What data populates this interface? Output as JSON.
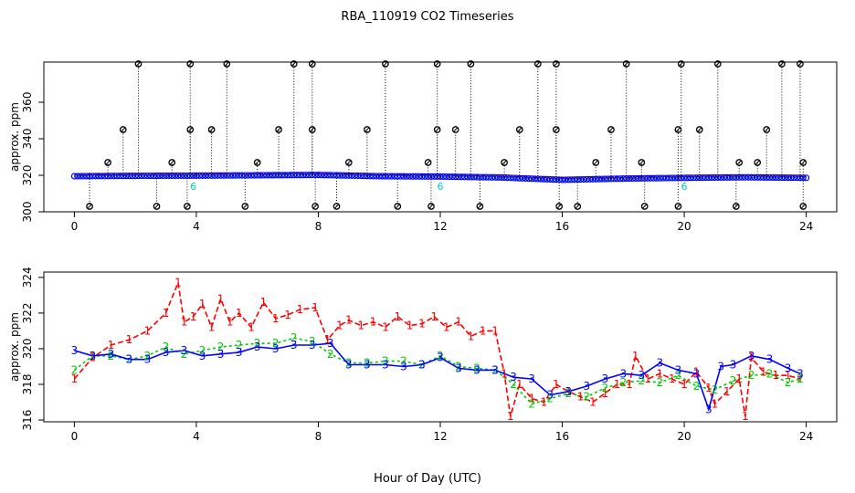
{
  "chart_data": [
    {
      "type": "scatter",
      "title": "RBA_110919  CO2 Timeseries",
      "xlabel": "",
      "ylabel": "approx. ppm",
      "xlim": [
        -1,
        25
      ],
      "ylim": [
        300,
        382
      ],
      "xticks": [
        0,
        4,
        8,
        12,
        16,
        20,
        24
      ],
      "yticks": [
        300,
        320,
        340,
        360
      ],
      "grid": false,
      "colors": {
        "series1": "#ff0000",
        "series2": "#00cc00",
        "series3": "#0000ff",
        "flagged": "#00cccc",
        "spikes": "#000000"
      },
      "baseline": {
        "x": [
          0,
          2,
          4,
          6,
          8,
          10,
          12,
          14,
          16,
          18,
          20,
          22,
          24
        ],
        "y": [
          319.5,
          319.7,
          319.8,
          320,
          320.2,
          319.5,
          319.3,
          318.8,
          317.5,
          318.2,
          318.6,
          318.9,
          318.6
        ]
      },
      "flagged_points": {
        "x": [
          3.9,
          12.0,
          20.0
        ],
        "y": [
          314,
          314,
          314
        ],
        "label": "6"
      },
      "spikes": {
        "x": [
          2.1,
          3.8,
          5.0,
          7.2,
          7.8,
          10.2,
          11.9,
          13.0,
          15.2,
          15.8,
          18.1,
          19.9,
          21.1,
          23.2,
          23.8
        ],
        "y": [
          381,
          381,
          381,
          381,
          381,
          381,
          381,
          381,
          381,
          381,
          381,
          381,
          381,
          381,
          381
        ]
      },
      "mid_points": {
        "x": [
          1.1,
          1.6,
          3.2,
          3.8,
          4.5,
          6.0,
          6.7,
          7.8,
          9.0,
          9.6,
          11.6,
          11.9,
          12.5,
          14.1,
          14.6,
          15.8,
          17.1,
          17.6,
          18.6,
          19.8,
          20.5,
          21.8,
          22.4,
          22.7,
          23.9
        ],
        "y": [
          327,
          345,
          327,
          345,
          345,
          327,
          345,
          345,
          327,
          345,
          327,
          345,
          345,
          327,
          345,
          345,
          327,
          345,
          327,
          345,
          345,
          327,
          327,
          345,
          327
        ]
      },
      "low_points": {
        "x": [
          0.5,
          2.7,
          3.7,
          5.6,
          7.9,
          8.6,
          10.6,
          11.7,
          13.3,
          15.9,
          16.5,
          18.7,
          19.8,
          21.7,
          23.9
        ],
        "y": [
          303,
          303,
          303,
          303,
          303,
          303,
          303,
          303,
          303,
          303,
          303,
          303,
          303,
          303,
          303
        ]
      }
    },
    {
      "type": "line",
      "title": "",
      "xlabel": "Hour of Day (UTC)",
      "ylabel": "approx. ppm",
      "xlim": [
        -1,
        25
      ],
      "ylim": [
        315.9,
        324.3
      ],
      "xticks": [
        0,
        4,
        8,
        12,
        16,
        20,
        24
      ],
      "yticks": [
        316,
        318,
        320,
        322,
        324
      ],
      "grid": false,
      "series": [
        {
          "name": "1",
          "color": "#ff0000",
          "x": [
            0,
            0.6,
            1.2,
            1.8,
            2.4,
            3.0,
            3.4,
            3.6,
            3.9,
            4.2,
            4.5,
            4.8,
            5.1,
            5.4,
            5.8,
            6.2,
            6.6,
            7.0,
            7.4,
            7.9,
            8.3,
            8.7,
            9.0,
            9.4,
            9.8,
            10.2,
            10.6,
            11.0,
            11.4,
            11.8,
            12.2,
            12.6,
            13.0,
            13.4,
            13.8,
            14.1,
            14.3,
            14.6,
            15.0,
            15.4,
            15.8,
            16.2,
            16.6,
            17.0,
            17.4,
            17.8,
            18.2,
            18.4,
            18.8,
            19.2,
            19.6,
            20.0,
            20.4,
            20.8,
            21.0,
            21.4,
            21.8,
            22.0,
            22.2,
            22.6,
            23.0,
            23.4,
            23.8
          ],
          "values": [
            318.3,
            319.5,
            320.2,
            320.5,
            321.0,
            322.0,
            323.7,
            321.5,
            321.8,
            322.5,
            321.2,
            322.8,
            321.5,
            322.0,
            321.2,
            322.6,
            321.7,
            321.9,
            322.2,
            322.3,
            320.5,
            321.3,
            321.6,
            321.3,
            321.5,
            321.2,
            321.8,
            321.3,
            321.4,
            321.8,
            321.2,
            321.5,
            320.7,
            321.0,
            321.0,
            318.6,
            316.2,
            318.0,
            317.2,
            317.0,
            318.0,
            317.6,
            317.3,
            317.0,
            317.5,
            318.0,
            318.0,
            319.6,
            318.3,
            318.6,
            318.3,
            318.0,
            318.7,
            317.8,
            316.9,
            317.6,
            318.3,
            316.2,
            319.5,
            318.7,
            318.5,
            318.5,
            318.3
          ]
        },
        {
          "name": "2",
          "color": "#00cc00",
          "x": [
            0,
            0.6,
            1.2,
            1.8,
            2.4,
            3.0,
            3.6,
            4.2,
            4.8,
            5.4,
            6.0,
            6.6,
            7.2,
            7.8,
            8.4,
            9.0,
            9.6,
            10.2,
            10.8,
            11.4,
            12.0,
            12.6,
            13.2,
            13.8,
            14.4,
            15.0,
            15.6,
            16.2,
            16.8,
            17.4,
            18.0,
            18.6,
            19.2,
            19.8,
            20.4,
            21.0,
            21.6,
            22.2,
            22.8,
            23.4,
            23.8
          ],
          "values": [
            318.8,
            319.6,
            319.6,
            319.4,
            319.6,
            320.1,
            319.7,
            319.9,
            320.1,
            320.2,
            320.3,
            320.3,
            320.6,
            320.4,
            319.7,
            319.2,
            319.2,
            319.3,
            319.3,
            319.1,
            319.6,
            319.0,
            318.9,
            318.8,
            318.0,
            316.9,
            317.2,
            317.5,
            317.3,
            317.8,
            318.1,
            318.2,
            318.1,
            318.5,
            317.9,
            317.7,
            318.2,
            318.5,
            318.6,
            318.1,
            318.3
          ]
        },
        {
          "name": "3",
          "color": "#0000ff",
          "x": [
            0,
            0.6,
            1.2,
            1.8,
            2.4,
            3.0,
            3.6,
            4.2,
            4.8,
            5.4,
            6.0,
            6.6,
            7.2,
            7.8,
            8.4,
            9.0,
            9.6,
            10.2,
            10.8,
            11.4,
            12.0,
            12.6,
            13.2,
            13.8,
            14.4,
            15.0,
            15.6,
            16.2,
            16.8,
            17.4,
            18.0,
            18.6,
            19.2,
            19.8,
            20.4,
            20.8,
            21.2,
            21.6,
            22.2,
            22.8,
            23.4,
            23.8
          ],
          "values": [
            319.9,
            319.6,
            319.7,
            319.4,
            319.4,
            319.8,
            319.9,
            319.6,
            319.7,
            319.8,
            320.1,
            320.0,
            320.2,
            320.2,
            320.3,
            319.1,
            319.1,
            319.1,
            319.0,
            319.1,
            319.5,
            318.9,
            318.8,
            318.8,
            318.4,
            318.3,
            317.4,
            317.6,
            317.9,
            318.3,
            318.6,
            318.5,
            319.2,
            318.8,
            318.6,
            316.6,
            319.0,
            319.1,
            319.6,
            319.4,
            318.9,
            318.6
          ]
        }
      ]
    }
  ]
}
